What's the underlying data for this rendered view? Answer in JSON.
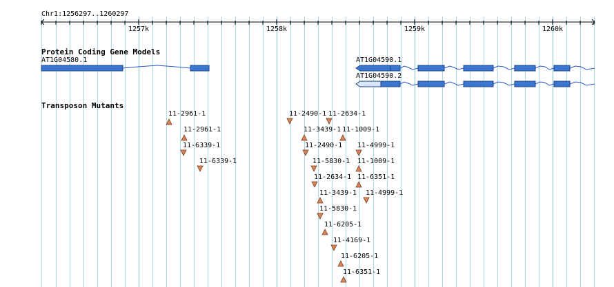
{
  "ruler": {
    "position": "Chr1:1256297..1260297",
    "ticks": [
      "1257k",
      "1258k",
      "1259k",
      "1260k"
    ]
  },
  "tracks": {
    "genes": {
      "title": "Protein Coding Gene Models",
      "models": [
        "AT1G04580.1",
        "AT1G04590.1",
        "AT1G04590.2"
      ]
    },
    "mutants": {
      "title": "Transposon Mutants",
      "labels": [
        "11-2961-1",
        "11-2961-1",
        "11-6339-1",
        "11-6339-1",
        "11-2490-1",
        "11-2634-1",
        "11-3439-1",
        "11-1009-1",
        "11-2490-1",
        "11-4999-1",
        "11-5830-1",
        "11-1009-1",
        "11-2634-1",
        "11-6351-1",
        "11-3439-1",
        "11-4999-1",
        "11-5830-1",
        "11-6205-1",
        "11-4169-1",
        "11-6205-1",
        "11-6351-1"
      ]
    }
  },
  "colors": {
    "exon_fill": "#3a78d0",
    "exon_stroke": "#1d3f8c",
    "utr_fill": "#d8e6f7",
    "intron": "#2a55c6",
    "mutant_fill": "#d6845a",
    "mutant_stroke": "#7a3a1a",
    "grid_minor": "#a8dcec",
    "grid_major": "#7fc6e0"
  }
}
